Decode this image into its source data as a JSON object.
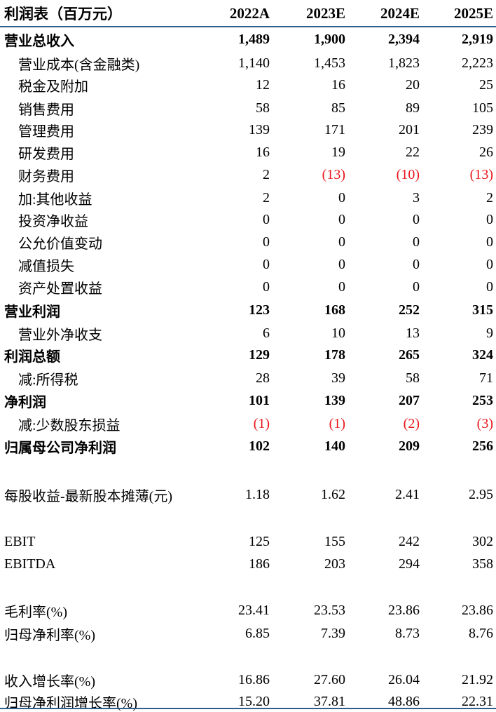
{
  "header": {
    "title": "利润表（百万元）",
    "years": [
      "2022A",
      "2023E",
      "2024E",
      "2025E"
    ]
  },
  "rows": [
    {
      "label": "营业总收入",
      "values": [
        "1,489",
        "1,900",
        "2,394",
        "2,919"
      ],
      "bold": true,
      "indent": false,
      "neg": [
        false,
        false,
        false,
        false
      ]
    },
    {
      "label": "营业成本(含金融类)",
      "values": [
        "1,140",
        "1,453",
        "1,823",
        "2,223"
      ],
      "bold": false,
      "indent": true,
      "neg": [
        false,
        false,
        false,
        false
      ]
    },
    {
      "label": "税金及附加",
      "values": [
        "12",
        "16",
        "20",
        "25"
      ],
      "bold": false,
      "indent": true,
      "neg": [
        false,
        false,
        false,
        false
      ]
    },
    {
      "label": "销售费用",
      "values": [
        "58",
        "85",
        "89",
        "105"
      ],
      "bold": false,
      "indent": true,
      "neg": [
        false,
        false,
        false,
        false
      ]
    },
    {
      "label": "管理费用",
      "values": [
        "139",
        "171",
        "201",
        "239"
      ],
      "bold": false,
      "indent": true,
      "neg": [
        false,
        false,
        false,
        false
      ]
    },
    {
      "label": "研发费用",
      "values": [
        "16",
        "19",
        "22",
        "26"
      ],
      "bold": false,
      "indent": true,
      "neg": [
        false,
        false,
        false,
        false
      ]
    },
    {
      "label": "财务费用",
      "values": [
        "2",
        "(13)",
        "(10)",
        "(13)"
      ],
      "bold": false,
      "indent": true,
      "neg": [
        false,
        true,
        true,
        true
      ]
    },
    {
      "label": "加:其他收益",
      "values": [
        "2",
        "0",
        "3",
        "2"
      ],
      "bold": false,
      "indent": true,
      "neg": [
        false,
        false,
        false,
        false
      ]
    },
    {
      "label": "投资净收益",
      "values": [
        "0",
        "0",
        "0",
        "0"
      ],
      "bold": false,
      "indent": true,
      "neg": [
        false,
        false,
        false,
        false
      ]
    },
    {
      "label": "公允价值变动",
      "values": [
        "0",
        "0",
        "0",
        "0"
      ],
      "bold": false,
      "indent": true,
      "neg": [
        false,
        false,
        false,
        false
      ]
    },
    {
      "label": "减值损失",
      "values": [
        "0",
        "0",
        "0",
        "0"
      ],
      "bold": false,
      "indent": true,
      "neg": [
        false,
        false,
        false,
        false
      ]
    },
    {
      "label": "资产处置收益",
      "values": [
        "0",
        "0",
        "0",
        "0"
      ],
      "bold": false,
      "indent": true,
      "neg": [
        false,
        false,
        false,
        false
      ]
    },
    {
      "label": "营业利润",
      "values": [
        "123",
        "168",
        "252",
        "315"
      ],
      "bold": true,
      "indent": false,
      "neg": [
        false,
        false,
        false,
        false
      ]
    },
    {
      "label": "营业外净收支",
      "values": [
        "6",
        "10",
        "13",
        "9"
      ],
      "bold": false,
      "indent": true,
      "neg": [
        false,
        false,
        false,
        false
      ]
    },
    {
      "label": "利润总额",
      "values": [
        "129",
        "178",
        "265",
        "324"
      ],
      "bold": true,
      "indent": false,
      "neg": [
        false,
        false,
        false,
        false
      ]
    },
    {
      "label": "减:所得税",
      "values": [
        "28",
        "39",
        "58",
        "71"
      ],
      "bold": false,
      "indent": true,
      "neg": [
        false,
        false,
        false,
        false
      ]
    },
    {
      "label": "净利润",
      "values": [
        "101",
        "139",
        "207",
        "253"
      ],
      "bold": true,
      "indent": false,
      "neg": [
        false,
        false,
        false,
        false
      ]
    },
    {
      "label": "减:少数股东损益",
      "values": [
        "(1)",
        "(1)",
        "(2)",
        "(3)"
      ],
      "bold": false,
      "indent": true,
      "neg": [
        true,
        true,
        true,
        true
      ]
    },
    {
      "label": "归属母公司净利润",
      "values": [
        "102",
        "140",
        "209",
        "256"
      ],
      "bold": true,
      "indent": false,
      "neg": [
        false,
        false,
        false,
        false
      ]
    },
    {
      "label": "每股收益-最新股本摊薄(元)",
      "values": [
        "1.18",
        "1.62",
        "2.41",
        "2.95"
      ],
      "bold": false,
      "indent": false,
      "neg": [
        false,
        false,
        false,
        false
      ]
    },
    {
      "label": "EBIT",
      "values": [
        "125",
        "155",
        "242",
        "302"
      ],
      "bold": false,
      "indent": false,
      "neg": [
        false,
        false,
        false,
        false
      ]
    },
    {
      "label": "EBITDA",
      "values": [
        "186",
        "203",
        "294",
        "358"
      ],
      "bold": false,
      "indent": false,
      "neg": [
        false,
        false,
        false,
        false
      ]
    },
    {
      "label": "毛利率(%)",
      "values": [
        "23.41",
        "23.53",
        "23.86",
        "23.86"
      ],
      "bold": false,
      "indent": false,
      "neg": [
        false,
        false,
        false,
        false
      ]
    },
    {
      "label": "归母净利率(%)",
      "values": [
        "6.85",
        "7.39",
        "8.73",
        "8.76"
      ],
      "bold": false,
      "indent": false,
      "neg": [
        false,
        false,
        false,
        false
      ]
    },
    {
      "label": "收入增长率(%)",
      "values": [
        "16.86",
        "27.60",
        "26.04",
        "21.92"
      ],
      "bold": false,
      "indent": false,
      "neg": [
        false,
        false,
        false,
        false
      ]
    },
    {
      "label": "归母净利润增长率(%)",
      "values": [
        "15.20",
        "37.81",
        "48.86",
        "22.31"
      ],
      "bold": false,
      "indent": false,
      "neg": [
        false,
        false,
        false,
        false
      ]
    }
  ],
  "colors": {
    "negative": "#e8161b",
    "rule": "#2e5f8a"
  }
}
